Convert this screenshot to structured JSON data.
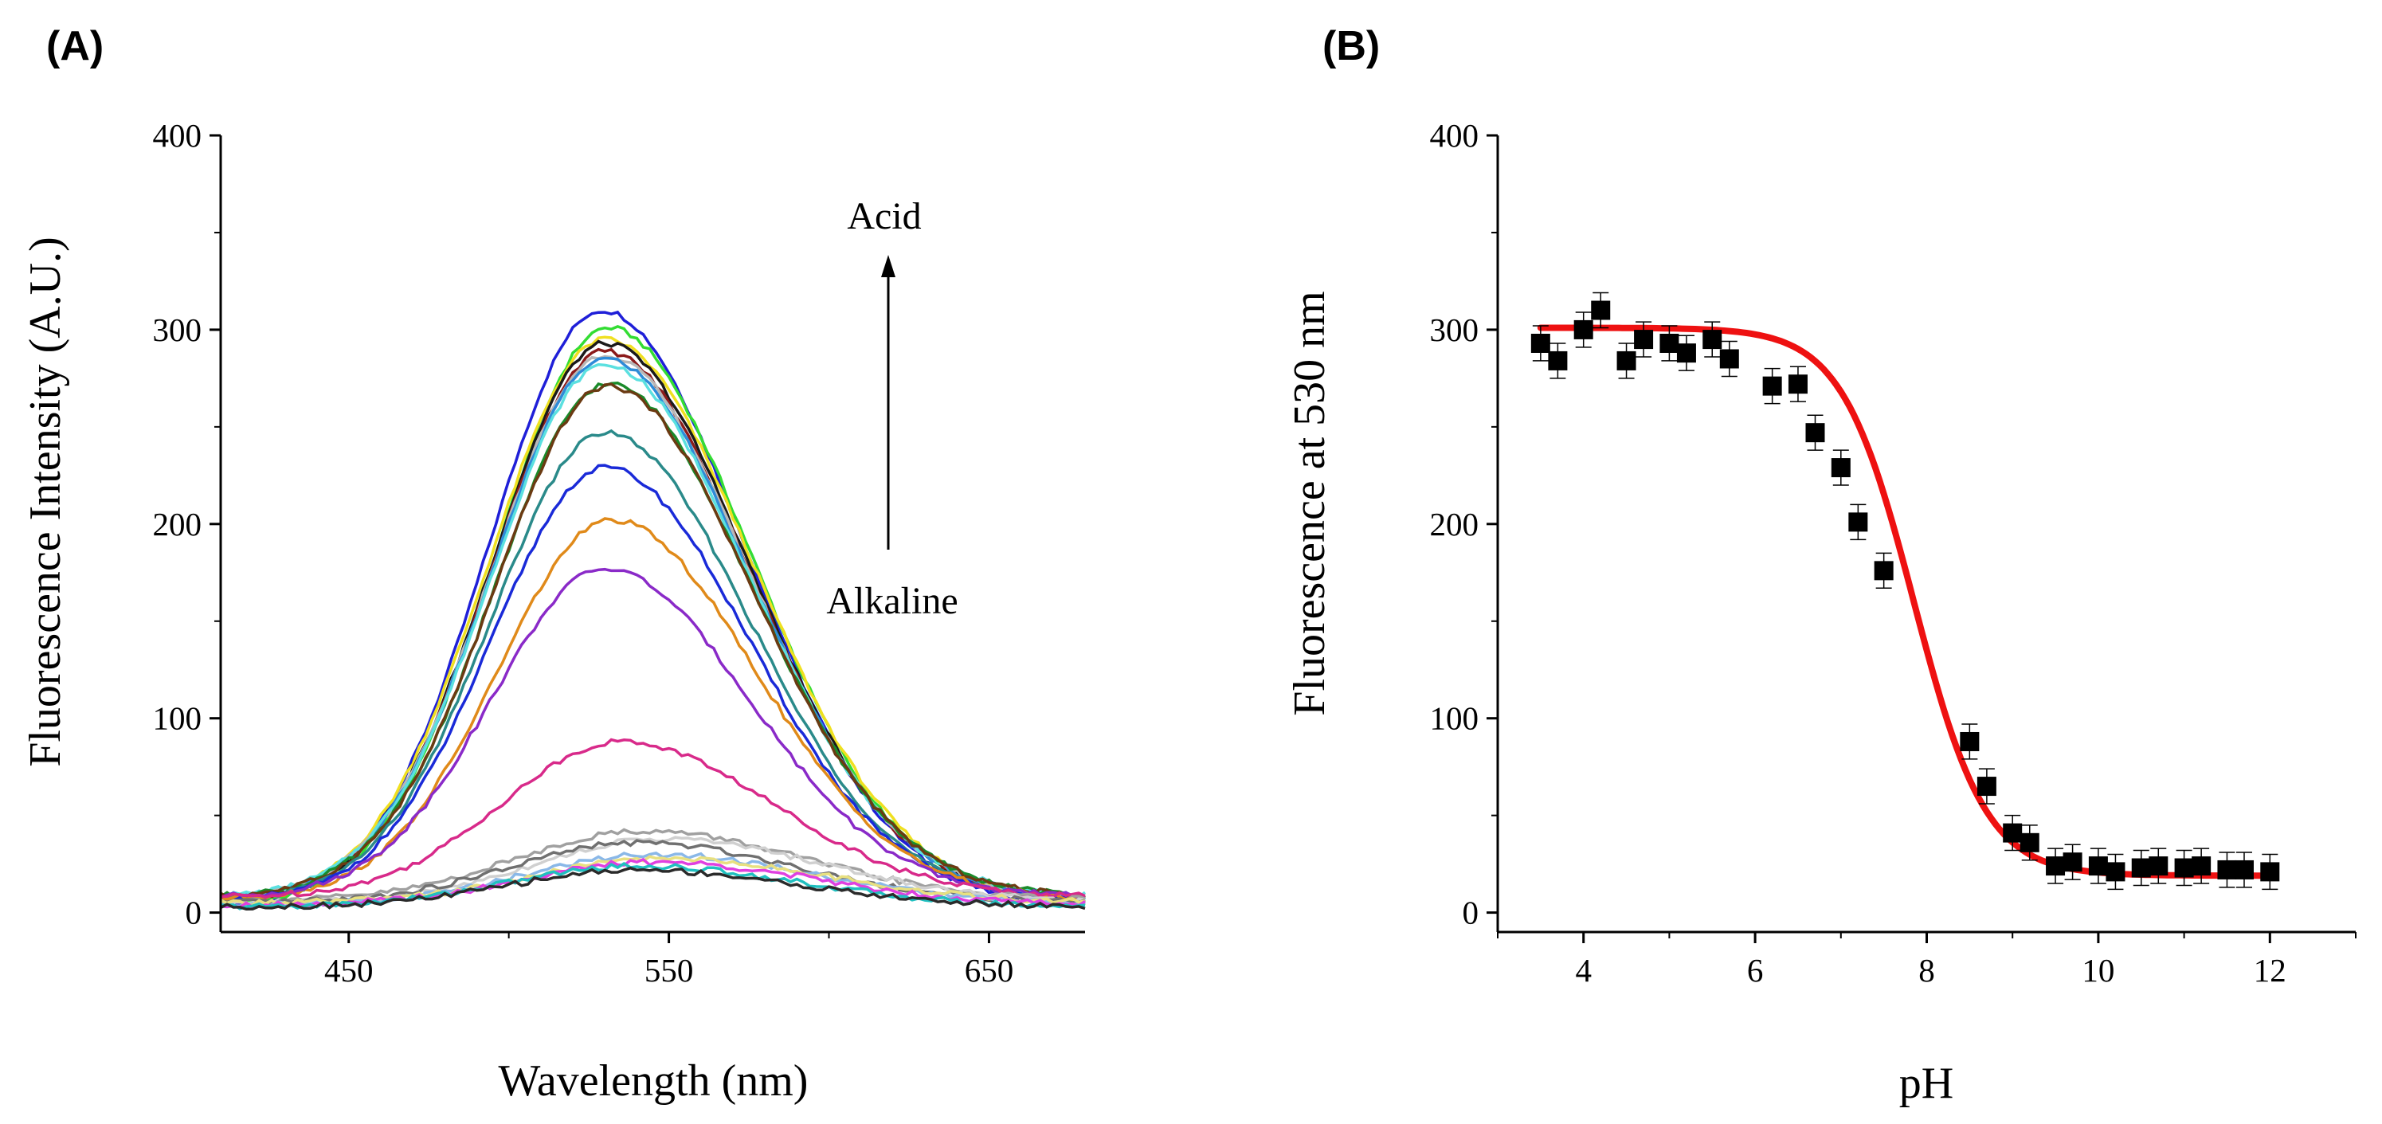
{
  "chart_data": [
    {
      "type": "line",
      "panel_label": "(A)",
      "xlabel": "Wavelength (nm)",
      "ylabel": "Fluorescence Intensity (A.U.)",
      "xlim": [
        410,
        680
      ],
      "ylim": [
        -10,
        400
      ],
      "xticks": [
        450,
        550,
        650
      ],
      "yticks": [
        0,
        100,
        200,
        300,
        400
      ],
      "annotations": {
        "top": "Acid",
        "bottom": "Alkaline"
      },
      "series_note": "Gaussian-like emission spectra peaking near 530 nm, one per pH",
      "series": [
        {
          "name": "s1",
          "color": "#1f1fd8",
          "peak": 310,
          "center": 529,
          "width": 40,
          "baseline": 3
        },
        {
          "name": "s2",
          "color": "#33dd33",
          "peak": 301,
          "center": 531,
          "width": 40,
          "baseline": 4
        },
        {
          "name": "s3",
          "color": "#f0e020",
          "peak": 295,
          "center": 530,
          "width": 41,
          "baseline": 5
        },
        {
          "name": "s4",
          "color": "#1a1a1a",
          "peak": 293,
          "center": 530,
          "width": 40,
          "baseline": 6
        },
        {
          "name": "s5",
          "color": "#8b1a1a",
          "peak": 289,
          "center": 530,
          "width": 40,
          "baseline": 6
        },
        {
          "name": "s6",
          "color": "#b8b8b8",
          "peak": 287,
          "center": 530,
          "width": 40,
          "baseline": 7
        },
        {
          "name": "s7",
          "color": "#2e8bd8",
          "peak": 285,
          "center": 530,
          "width": 40,
          "baseline": 7
        },
        {
          "name": "s8",
          "color": "#5be0e0",
          "peak": 282,
          "center": 530,
          "width": 40,
          "baseline": 8
        },
        {
          "name": "s9",
          "color": "#1a8a2a",
          "peak": 272,
          "center": 531,
          "width": 40,
          "baseline": 8
        },
        {
          "name": "s10",
          "color": "#6b3a12",
          "peak": 271,
          "center": 531,
          "width": 40,
          "baseline": 8
        },
        {
          "name": "s11",
          "color": "#2a8a8a",
          "peak": 247,
          "center": 530,
          "width": 40,
          "baseline": 6
        },
        {
          "name": "s12",
          "color": "#1a2ad8",
          "peak": 229,
          "center": 530,
          "width": 40,
          "baseline": 6
        },
        {
          "name": "s13",
          "color": "#e08a1a",
          "peak": 202,
          "center": 532,
          "width": 40,
          "baseline": 7
        },
        {
          "name": "s14",
          "color": "#8a2ac8",
          "peak": 177,
          "center": 530,
          "width": 40,
          "baseline": 8
        },
        {
          "name": "s15",
          "color": "#d82a8a",
          "peak": 88,
          "center": 535,
          "width": 42,
          "baseline": 8
        },
        {
          "name": "s16",
          "color": "#a0a0a0",
          "peak": 42,
          "center": 542,
          "width": 45,
          "baseline": 6
        },
        {
          "name": "s17",
          "color": "#d0d0d0",
          "peak": 38,
          "center": 548,
          "width": 45,
          "baseline": 5
        },
        {
          "name": "s18",
          "color": "#707070",
          "peak": 36,
          "center": 540,
          "width": 44,
          "baseline": 5
        },
        {
          "name": "s19",
          "color": "#8ab8e8",
          "peak": 30,
          "center": 545,
          "width": 45,
          "baseline": 4
        },
        {
          "name": "s20",
          "color": "#e8e080",
          "peak": 28,
          "center": 548,
          "width": 45,
          "baseline": 5
        },
        {
          "name": "s21",
          "color": "#e040e0",
          "peak": 26,
          "center": 545,
          "width": 45,
          "baseline": 4
        },
        {
          "name": "s22",
          "color": "#20c0c0",
          "peak": 24,
          "center": 540,
          "width": 45,
          "baseline": 3
        },
        {
          "name": "s23",
          "color": "#2a2a2a",
          "peak": 22,
          "center": 540,
          "width": 44,
          "baseline": 3
        }
      ]
    },
    {
      "type": "scatter",
      "panel_label": "(B)",
      "xlabel": "pH",
      "ylabel": "Fluorescence at 530 nm",
      "xlim": [
        3,
        13
      ],
      "ylim": [
        -10,
        400
      ],
      "xticks": [
        4,
        6,
        8,
        10,
        12
      ],
      "yticks": [
        0,
        100,
        200,
        300,
        400
      ],
      "points": {
        "x": [
          3.5,
          3.7,
          4.0,
          4.2,
          4.5,
          4.7,
          5.0,
          5.2,
          5.5,
          5.7,
          6.2,
          6.5,
          6.7,
          7.0,
          7.2,
          7.5,
          8.5,
          8.7,
          9.0,
          9.2,
          9.5,
          9.7,
          10.0,
          10.2,
          10.5,
          10.7,
          11.0,
          11.2,
          11.5,
          11.7,
          12.0
        ],
        "y": [
          293,
          284,
          300,
          310,
          284,
          295,
          293,
          288,
          295,
          285,
          271,
          272,
          247,
          229,
          201,
          176,
          88,
          65,
          41,
          36,
          24,
          26,
          24,
          21,
          23,
          24,
          23,
          24,
          22,
          22,
          21
        ],
        "error": 9,
        "marker_color": "#000000"
      },
      "fit": {
        "model": "sigmoid",
        "top": 301,
        "bottom": 19,
        "pKa": 7.85,
        "slope": 0.42,
        "color": "#ee1111"
      }
    }
  ]
}
